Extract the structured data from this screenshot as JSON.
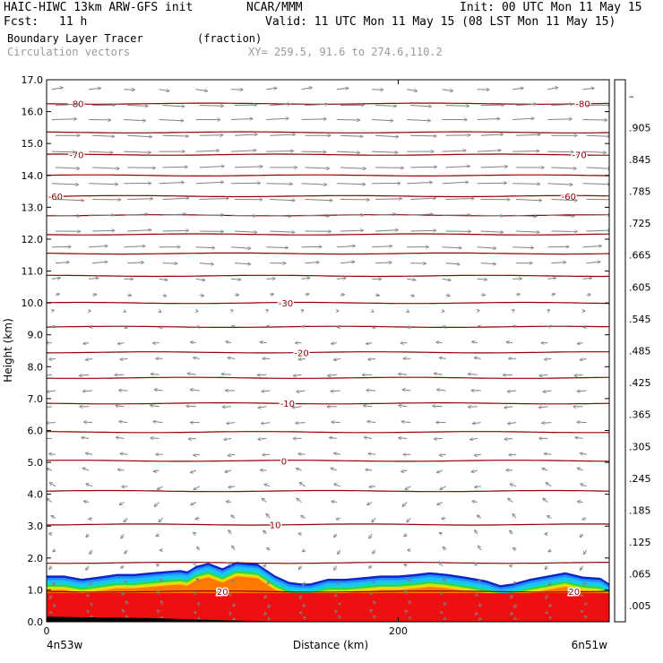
{
  "header": {
    "model": "HAIC-HIWC 13km ARW-GFS init",
    "org": "NCAR/MMM",
    "init": "Init: 00 UTC Mon 11 May 15",
    "fcst_label": "Fcst:",
    "fcst_value": "11 h",
    "valid": "Valid: 11 UTC Mon 11 May 15 (08 LST Mon 11 May 15)",
    "field1": "Boundary Layer Tracer",
    "field1_units": "(fraction)",
    "field2": "Circulation vectors",
    "xy": "XY= 259.5, 91.6 to 274.6,110.2"
  },
  "chart_data": {
    "type": "heatmap",
    "title": "Boundary Layer Tracer",
    "units": "(fraction)",
    "xlabel": "Distance (km)",
    "ylabel": "Height (km)",
    "xlim": [
      0,
      320
    ],
    "ylim": [
      0,
      17
    ],
    "x_ticks": [
      {
        "value": 0,
        "label": "0"
      },
      {
        "value": 200,
        "label": "200"
      }
    ],
    "y_ticks": [
      "0.0",
      "1.0",
      "2.0",
      "3.0",
      "4.0",
      "5.0",
      "6.0",
      "7.0",
      "8.0",
      "9.0",
      "10.0",
      "11.0",
      "12.0",
      "13.0",
      "14.0",
      "15.0",
      "16.0",
      "17.0"
    ],
    "left_endpoint": "4n53w",
    "right_endpoint": "6n51w",
    "colorbar": {
      "levels": [
        ".005",
        ".065",
        ".125",
        ".185",
        ".245",
        ".305",
        ".365",
        ".425",
        ".485",
        ".545",
        ".605",
        ".665",
        ".725",
        ".785",
        ".845",
        ".905",
        "–"
      ],
      "colors": [
        "#ffffff",
        "#0a24c8",
        "#0a50f0",
        "#1e8cff",
        "#1ebeff",
        "#10d8c8",
        "#10d880",
        "#3cd23c",
        "#8cdc28",
        "#c8e614",
        "#f0f000",
        "#ffd200",
        "#ffaa00",
        "#ff7800",
        "#ff4600",
        "#f01414",
        "#ee0000"
      ]
    },
    "contours": {
      "color": "#8b0000",
      "levels": [
        {
          "h": 0.95,
          "label": "20",
          "lx": [
            100,
            300
          ]
        },
        {
          "h": 1.85
        },
        {
          "h": 3.05,
          "label": "10",
          "lx": [
            130
          ]
        },
        {
          "h": 4.1
        },
        {
          "h": 5.05,
          "label": "0",
          "lx": [
            135
          ]
        },
        {
          "h": 5.95
        },
        {
          "h": 6.85,
          "label": "-10",
          "lx": [
            137
          ]
        },
        {
          "h": 7.65
        },
        {
          "h": 8.45,
          "label": "-20",
          "lx": [
            145
          ]
        },
        {
          "h": 9.25
        },
        {
          "h": 10.0,
          "label": "-30",
          "lx": [
            136
          ]
        },
        {
          "h": 10.85
        },
        {
          "h": 11.55
        },
        {
          "h": 12.15
        },
        {
          "h": 12.75
        },
        {
          "h": 13.35,
          "label": "-60",
          "lx": [
            5,
            297
          ]
        },
        {
          "h": 14.0
        },
        {
          "h": 14.65,
          "label": "-70",
          "lx": [
            17,
            303
          ]
        },
        {
          "h": 15.35
        },
        {
          "h": 16.25,
          "label": "-80",
          "lx": [
            17,
            305
          ]
        }
      ]
    },
    "bl_top_km": [
      [
        0,
        1.45
      ],
      [
        10,
        1.45
      ],
      [
        20,
        1.35
      ],
      [
        30,
        1.42
      ],
      [
        40,
        1.5
      ],
      [
        50,
        1.5
      ],
      [
        60,
        1.55
      ],
      [
        70,
        1.6
      ],
      [
        76,
        1.62
      ],
      [
        80,
        1.58
      ],
      [
        85,
        1.75
      ],
      [
        92,
        1.85
      ],
      [
        100,
        1.68
      ],
      [
        108,
        1.88
      ],
      [
        120,
        1.82
      ],
      [
        130,
        1.45
      ],
      [
        138,
        1.25
      ],
      [
        145,
        1.2
      ],
      [
        150,
        1.2
      ],
      [
        160,
        1.35
      ],
      [
        170,
        1.35
      ],
      [
        180,
        1.4
      ],
      [
        190,
        1.45
      ],
      [
        200,
        1.45
      ],
      [
        210,
        1.5
      ],
      [
        218,
        1.55
      ],
      [
        228,
        1.5
      ],
      [
        240,
        1.4
      ],
      [
        250,
        1.3
      ],
      [
        258,
        1.15
      ],
      [
        265,
        1.2
      ],
      [
        275,
        1.35
      ],
      [
        285,
        1.45
      ],
      [
        295,
        1.55
      ],
      [
        305,
        1.42
      ],
      [
        315,
        1.38
      ],
      [
        320,
        1.2
      ]
    ],
    "bl_core_top_km": 0.9,
    "bl_bands_km": [
      {
        "d": 0.5,
        "color": "#0a24c8"
      },
      {
        "d": 0.43,
        "color": "#1e8cff"
      },
      {
        "d": 0.36,
        "color": "#1ebeff"
      },
      {
        "d": 0.28,
        "color": "#10d8c8"
      },
      {
        "d": 0.21,
        "color": "#3cd23c"
      },
      {
        "d": 0.15,
        "color": "#c8e614"
      },
      {
        "d": 0.1,
        "color": "#ffd200"
      },
      {
        "d": 0.05,
        "color": "#ff7800"
      }
    ],
    "vector_color": "#808080",
    "vector_x_km": [
      3,
      24,
      44,
      64,
      85,
      105,
      125,
      145,
      165,
      185,
      205,
      225,
      245,
      265,
      285,
      305
    ],
    "vector_rows": [
      {
        "h": 16.7,
        "u": 0.55,
        "w": 0.15
      },
      {
        "h": 16.2,
        "u": 1.1,
        "w": 0.1
      },
      {
        "h": 15.75,
        "u": 1.15,
        "w": 0.1
      },
      {
        "h": 15.25,
        "u": 1.2,
        "w": 0.1
      },
      {
        "h": 14.75,
        "u": 1.25,
        "w": 0.1
      },
      {
        "h": 14.25,
        "u": 1.3,
        "w": 0.1
      },
      {
        "h": 13.75,
        "u": 1.35,
        "w": 0.1
      },
      {
        "h": 13.25,
        "u": 1.35,
        "w": 0.1
      },
      {
        "h": 12.75,
        "u": 1.3,
        "w": 0.1
      },
      {
        "h": 12.25,
        "u": 1.2,
        "w": 0.1
      },
      {
        "h": 11.75,
        "u": 1.0,
        "w": 0.1
      },
      {
        "h": 11.25,
        "u": 0.75,
        "w": 0.1
      },
      {
        "h": 10.75,
        "u": 0.45,
        "w": 0.1
      },
      {
        "h": 10.25,
        "u": 0.2,
        "w": 0.1
      },
      {
        "h": 9.75,
        "u": 0.1,
        "w": 0.1
      },
      {
        "h": 9.25,
        "u": -0.15,
        "w": 0.1
      },
      {
        "h": 8.75,
        "u": -0.3,
        "w": 0.1
      },
      {
        "h": 8.25,
        "u": -0.35,
        "w": 0.1
      },
      {
        "h": 7.75,
        "u": -0.45,
        "w": 0.1
      },
      {
        "h": 7.25,
        "u": -0.45,
        "w": 0.1
      },
      {
        "h": 6.75,
        "u": -0.45,
        "w": 0.1
      },
      {
        "h": 6.25,
        "u": -0.45,
        "w": 0.1
      },
      {
        "h": 5.75,
        "u": -0.4,
        "w": 0.1
      },
      {
        "h": 5.25,
        "u": -0.35,
        "w": 0.1
      },
      {
        "h": 4.75,
        "u": -0.3,
        "w": 0.2
      },
      {
        "h": 4.25,
        "u": -0.3,
        "w": 0.3
      },
      {
        "h": 3.75,
        "u": -0.25,
        "w": 0.35
      },
      {
        "h": 3.25,
        "u": -0.2,
        "w": 0.35
      },
      {
        "h": 2.75,
        "u": -0.15,
        "w": 0.35
      },
      {
        "h": 2.25,
        "u": -0.15,
        "w": 0.35
      },
      {
        "h": 1.75,
        "u": -0.15,
        "w": 0.35
      },
      {
        "h": 1.25,
        "u": -0.15,
        "w": 0.3
      },
      {
        "h": 0.85,
        "u": -0.1,
        "w": 0.35
      },
      {
        "h": 0.55,
        "u": -0.1,
        "w": 0.3
      },
      {
        "h": 0.3,
        "u": -0.1,
        "w": 0.25
      },
      {
        "h": 0.12,
        "u": -0.1,
        "w": 0.2
      }
    ],
    "terrain_km": [
      [
        0,
        0.15
      ],
      [
        30,
        0.12
      ],
      [
        60,
        0.1
      ],
      [
        90,
        0.05
      ],
      [
        110,
        0.02
      ],
      [
        130,
        0.0
      ],
      [
        320,
        0.0
      ]
    ]
  }
}
